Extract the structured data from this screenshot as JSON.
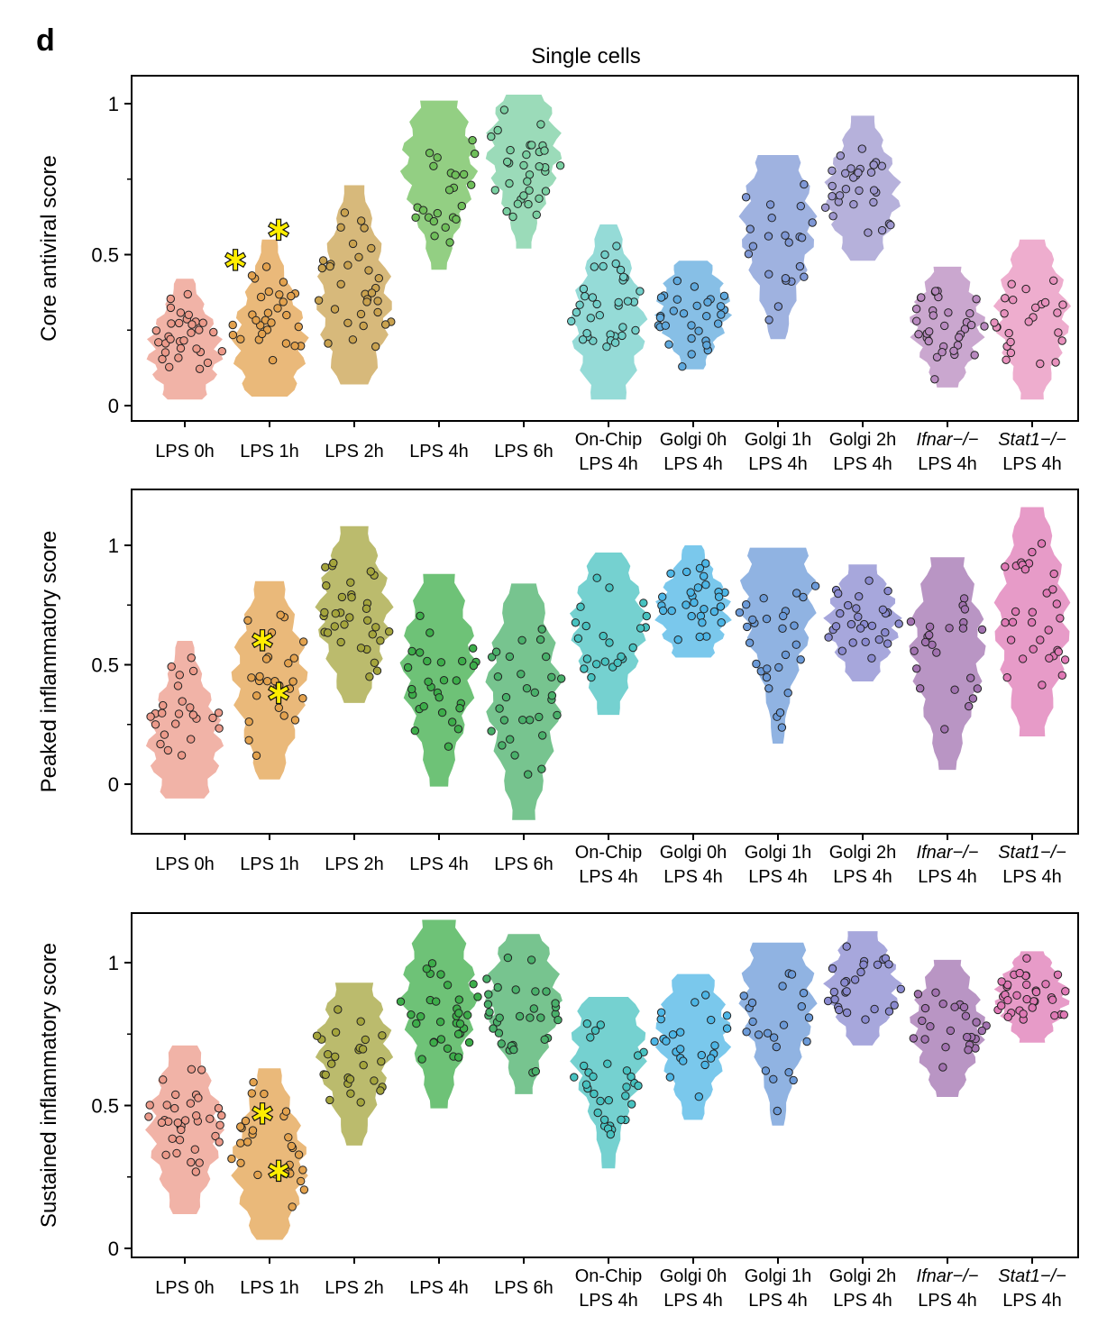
{
  "figure": {
    "panel_letter": "d",
    "title": "Single cells"
  },
  "chart_data": [
    {
      "type": "violin",
      "ylabel": "Core antiviral score",
      "ylim": [
        0,
        1.1
      ],
      "yticks": [
        0,
        0.5,
        1
      ],
      "ytick_labels": [
        "0",
        "0.5",
        "1"
      ],
      "categories": [
        {
          "line1": "LPS 0h",
          "line2": ""
        },
        {
          "line1": "LPS 1h",
          "line2": ""
        },
        {
          "line1": "LPS 2h",
          "line2": ""
        },
        {
          "line1": "LPS 4h",
          "line2": ""
        },
        {
          "line1": "LPS 6h",
          "line2": ""
        },
        {
          "line1": "On-Chip",
          "line2": "LPS 4h"
        },
        {
          "line1": "Golgi 0h",
          "line2": "LPS 4h"
        },
        {
          "line1": "Golgi 1h",
          "line2": "LPS 4h"
        },
        {
          "line1": "Golgi 2h",
          "line2": "LPS 4h"
        },
        {
          "line1": "Ifnar−/−",
          "line2": "LPS 4h"
        },
        {
          "line1": "Stat1−/−",
          "line2": "LPS 4h"
        }
      ],
      "series": [
        {
          "min": 0.02,
          "max": 0.42,
          "median": 0.18
        },
        {
          "min": 0.03,
          "max": 0.55,
          "median": 0.21
        },
        {
          "min": 0.07,
          "max": 0.73,
          "median": 0.35
        },
        {
          "min": 0.45,
          "max": 1.01,
          "median": 0.8
        },
        {
          "min": 0.52,
          "max": 1.03,
          "median": 0.85
        },
        {
          "min": 0.02,
          "max": 0.6,
          "median": 0.27
        },
        {
          "min": 0.12,
          "max": 0.48,
          "median": 0.32
        },
        {
          "min": 0.22,
          "max": 0.83,
          "median": 0.6
        },
        {
          "min": 0.48,
          "max": 0.96,
          "median": 0.7
        },
        {
          "min": 0.06,
          "max": 0.46,
          "median": 0.27
        },
        {
          "min": 0.02,
          "max": 0.55,
          "median": 0.3
        }
      ],
      "highlighted": [
        {
          "category": 1,
          "value": 0.48
        },
        {
          "category": 1,
          "value": 0.58
        }
      ]
    },
    {
      "type": "violin",
      "ylabel": "Peaked inflammatory score",
      "ylim": [
        -0.15,
        1.2
      ],
      "yticks": [
        0,
        0.5,
        1
      ],
      "ytick_labels": [
        "0",
        "0.5",
        "1"
      ],
      "categories": [
        {
          "line1": "LPS 0h",
          "line2": ""
        },
        {
          "line1": "LPS 1h",
          "line2": ""
        },
        {
          "line1": "LPS 2h",
          "line2": ""
        },
        {
          "line1": "LPS 4h",
          "line2": ""
        },
        {
          "line1": "LPS 6h",
          "line2": ""
        },
        {
          "line1": "On-Chip",
          "line2": "LPS 4h"
        },
        {
          "line1": "Golgi 0h",
          "line2": "LPS 4h"
        },
        {
          "line1": "Golgi 1h",
          "line2": "LPS 4h"
        },
        {
          "line1": "Golgi 2h",
          "line2": "LPS 4h"
        },
        {
          "line1": "Ifnar−/−",
          "line2": "LPS 4h"
        },
        {
          "line1": "Stat1−/−",
          "line2": "LPS 4h"
        }
      ],
      "series": [
        {
          "min": -0.06,
          "max": 0.6,
          "median": 0.18
        },
        {
          "min": 0.02,
          "max": 0.85,
          "median": 0.45
        },
        {
          "min": 0.34,
          "max": 1.08,
          "median": 0.72
        },
        {
          "min": -0.01,
          "max": 0.88,
          "median": 0.5
        },
        {
          "min": -0.15,
          "max": 0.84,
          "median": 0.38
        },
        {
          "min": 0.29,
          "max": 0.97,
          "median": 0.67
        },
        {
          "min": 0.53,
          "max": 1.0,
          "median": 0.72
        },
        {
          "min": 0.17,
          "max": 0.99,
          "median": 0.78
        },
        {
          "min": 0.43,
          "max": 0.92,
          "median": 0.68
        },
        {
          "min": 0.06,
          "max": 0.95,
          "median": 0.58
        },
        {
          "min": 0.2,
          "max": 1.16,
          "median": 0.68
        }
      ],
      "highlighted": [
        {
          "category": 1,
          "value": 0.6
        },
        {
          "category": 1,
          "value": 0.38
        }
      ]
    },
    {
      "type": "violin",
      "ylabel": "Sustained inflammatory score",
      "ylim": [
        -0.02,
        1.17
      ],
      "yticks": [
        0,
        0.5,
        1
      ],
      "ytick_labels": [
        "0",
        "0.5",
        "1"
      ],
      "categories": [
        {
          "line1": "LPS 0h",
          "line2": ""
        },
        {
          "line1": "LPS 1h",
          "line2": ""
        },
        {
          "line1": "LPS 2h",
          "line2": ""
        },
        {
          "line1": "LPS 4h",
          "line2": ""
        },
        {
          "line1": "LPS 6h",
          "line2": ""
        },
        {
          "line1": "On-Chip",
          "line2": "LPS 4h"
        },
        {
          "line1": "Golgi 0h",
          "line2": "LPS 4h"
        },
        {
          "line1": "Golgi 1h",
          "line2": "LPS 4h"
        },
        {
          "line1": "Golgi 2h",
          "line2": "LPS 4h"
        },
        {
          "line1": "Ifnar−/−",
          "line2": "LPS 4h"
        },
        {
          "line1": "Stat1−/−",
          "line2": "LPS 4h"
        }
      ],
      "series": [
        {
          "min": 0.12,
          "max": 0.71,
          "median": 0.42
        },
        {
          "min": 0.03,
          "max": 0.63,
          "median": 0.3
        },
        {
          "min": 0.36,
          "max": 0.93,
          "median": 0.7
        },
        {
          "min": 0.49,
          "max": 1.15,
          "median": 0.88
        },
        {
          "min": 0.54,
          "max": 1.1,
          "median": 0.88
        },
        {
          "min": 0.28,
          "max": 0.88,
          "median": 0.7
        },
        {
          "min": 0.45,
          "max": 0.96,
          "median": 0.75
        },
        {
          "min": 0.43,
          "max": 1.07,
          "median": 0.88
        },
        {
          "min": 0.71,
          "max": 1.11,
          "median": 0.92
        },
        {
          "min": 0.53,
          "max": 1.01,
          "median": 0.78
        },
        {
          "min": 0.72,
          "max": 1.04,
          "median": 0.88
        }
      ],
      "highlighted": [
        {
          "category": 1,
          "value": 0.47
        },
        {
          "category": 1,
          "value": 0.27
        }
      ]
    }
  ],
  "colors": {
    "groups": [
      "#ec9a8a",
      "#e3a24e",
      "#c9a24f",
      "#6fbf5a",
      "#79cfa1",
      "#71cfc9",
      "#5fa9de",
      "#7f98d6",
      "#9e97cf",
      "#b889bf",
      "#e891bd"
    ],
    "groups_p2": [
      "#ec9a8a",
      "#e3a24e",
      "#a4a43c",
      "#3dad4a",
      "#49b06a",
      "#47c2c0",
      "#4db6e6",
      "#6b9ad8",
      "#8a8ad0",
      "#a272b0",
      "#df79b5"
    ],
    "star": "#ffee00"
  }
}
